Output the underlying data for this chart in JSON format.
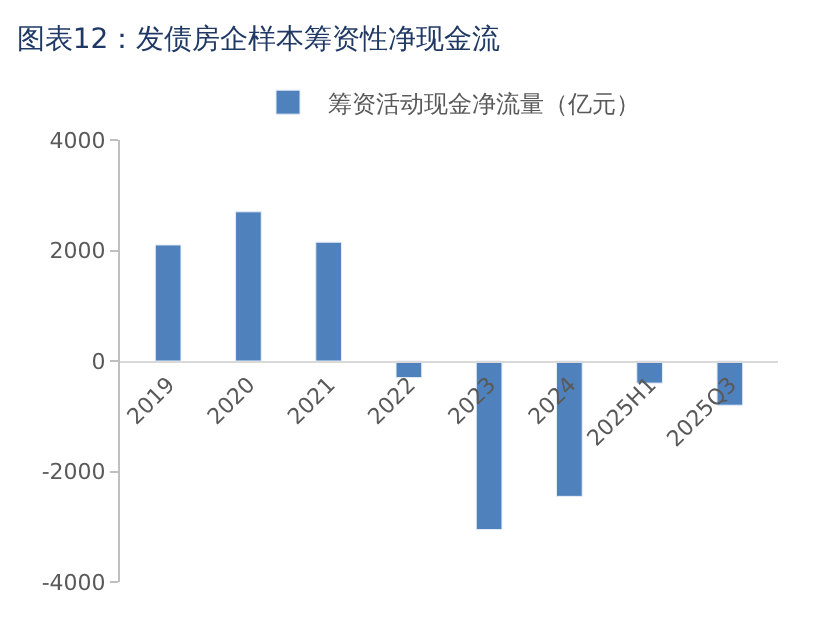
{
  "chart_data": {
    "type": "bar",
    "title": "图表12：发债房企样本筹资性净现金流",
    "categories": [
      "2019",
      "2020",
      "2021",
      "2022",
      "2023",
      "2024",
      "2025H1",
      "2025Q3"
    ],
    "series": [
      {
        "name": "筹资活动现金净流量（亿元）",
        "color": "#4f81bd",
        "values": [
          2100,
          2700,
          2150,
          -300,
          -3050,
          -2450,
          -400,
          -800
        ]
      }
    ],
    "ylim": [
      -4000,
      4000
    ],
    "yticks": [
      -4000,
      -2000,
      0,
      2000,
      4000
    ],
    "legend": "top"
  }
}
